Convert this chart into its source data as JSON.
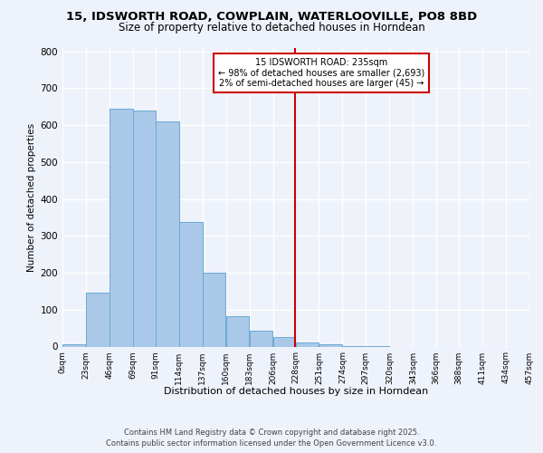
{
  "title_line1": "15, IDSWORTH ROAD, COWPLAIN, WATERLOOVILLE, PO8 8BD",
  "title_line2": "Size of property relative to detached houses in Horndean",
  "xlabel": "Distribution of detached houses by size in Horndean",
  "ylabel": "Number of detached properties",
  "bin_labels": [
    "0sqm",
    "23sqm",
    "46sqm",
    "69sqm",
    "91sqm",
    "114sqm",
    "137sqm",
    "160sqm",
    "183sqm",
    "206sqm",
    "228sqm",
    "251sqm",
    "274sqm",
    "297sqm",
    "320sqm",
    "343sqm",
    "366sqm",
    "388sqm",
    "411sqm",
    "434sqm",
    "457sqm"
  ],
  "bin_edges": [
    0,
    23,
    46,
    69,
    91,
    114,
    137,
    160,
    183,
    206,
    228,
    251,
    274,
    297,
    320,
    343,
    366,
    388,
    411,
    434,
    457
  ],
  "bar_values": [
    5,
    145,
    645,
    640,
    610,
    338,
    200,
    83,
    42,
    25,
    12,
    5,
    2,
    1,
    0,
    0,
    0,
    0,
    0,
    0
  ],
  "bar_color": "#aac8e8",
  "bar_edge_color": "#6aaad4",
  "vline_color": "#cc0000",
  "vline_x": 228,
  "annotation_title": "15 IDSWORTH ROAD: 235sqm",
  "annotation_line2": "← 98% of detached houses are smaller (2,693)",
  "annotation_line3": "2% of semi-detached houses are larger (45) →",
  "annotation_box_color": "#cc0000",
  "ylim": [
    0,
    810
  ],
  "yticks": [
    0,
    100,
    200,
    300,
    400,
    500,
    600,
    700,
    800
  ],
  "footer_line1": "Contains HM Land Registry data © Crown copyright and database right 2025.",
  "footer_line2": "Contains public sector information licensed under the Open Government Licence v3.0.",
  "bg_color": "#eef2fa",
  "grid_color": "#ffffff"
}
